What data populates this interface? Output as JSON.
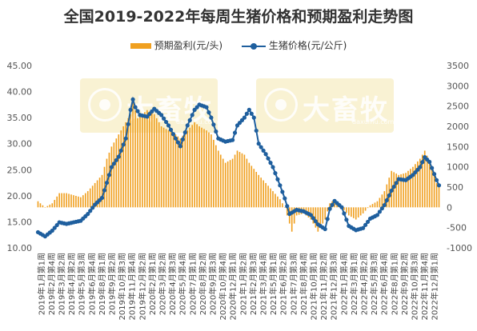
{
  "chart_data": {
    "type": "bar+line",
    "title": "全国2019-2022年每周生猪价格和预期盈利走势图",
    "legend_position": "top",
    "bar_series": {
      "name": "预期盈利(元/头)",
      "color": "#f0a020",
      "axis": "right"
    },
    "line_series": {
      "name": "生猪价格(元/公斤)",
      "color": "#1f5f9e",
      "axis": "left"
    },
    "left_axis": {
      "min": 10,
      "max": 45,
      "step": 5,
      "tick_labels": [
        "10.00",
        "15.00",
        "20.00",
        "25.00",
        "30.00",
        "35.00",
        "40.00",
        "45.00"
      ]
    },
    "right_axis": {
      "min": -1000,
      "max": 3500,
      "step": 500,
      "tick_labels": [
        "-1000",
        "-500",
        "0",
        "500",
        "1000",
        "1500",
        "2000",
        "2500",
        "3000",
        "3500"
      ]
    },
    "grid": false,
    "x_tick_labels": [
      "2019年1月第1周",
      "2019年2月第4周",
      "2019年3月第2周",
      "2019年4月第2周",
      "2019年5月第3周",
      "2019年6月第4周",
      "2019年8月第1周",
      "2019年9月第2周",
      "2019年10月第3周",
      "2019年11月第4周",
      "2019年12月第2周",
      "2020年2月第1周",
      "2020年3月第2周",
      "2020年4月第3周",
      "2020年5月第4周",
      "2020年7月第1周",
      "2020年8月第2周",
      "2020年9月第3周",
      "2020年10月第4周",
      "2020年12月第1周",
      "2021年1月第2周",
      "2021年2月第3周",
      "2021年3月第4周",
      "2021年5月第1周",
      "2021年6月第2周",
      "2021年7月第3周",
      "2021年8月第4周",
      "2021年10月第1周",
      "2021年11月第2周",
      "2021年12月第3周",
      "2022年1月第4周",
      "2022年3月第1周",
      "2022年4月第2周",
      "2022年5月第3周",
      "2022年6月第4周",
      "2022年8月第1周",
      "2022年9月第2周",
      "2022年10月第3周",
      "2022年11月第4周",
      "2022年12月第1周"
    ],
    "price_keypoints": [
      [
        0,
        13.0
      ],
      [
        3,
        12.2
      ],
      [
        6,
        13.3
      ],
      [
        9,
        14.9
      ],
      [
        12,
        14.6
      ],
      [
        15,
        14.9
      ],
      [
        18,
        15.2
      ],
      [
        21,
        16.5
      ],
      [
        24,
        18.3
      ],
      [
        27,
        19.6
      ],
      [
        29,
        22.5
      ],
      [
        31,
        25.5
      ],
      [
        34,
        27.5
      ],
      [
        37,
        31.0
      ],
      [
        39,
        36.5
      ],
      [
        40,
        38.5
      ],
      [
        41,
        37.0
      ],
      [
        43,
        35.5
      ],
      [
        46,
        35.2
      ],
      [
        49,
        36.7
      ],
      [
        52,
        35.5
      ],
      [
        55,
        33.5
      ],
      [
        58,
        31.0
      ],
      [
        60,
        29.5
      ],
      [
        63,
        33.5
      ],
      [
        66,
        36.5
      ],
      [
        68,
        37.5
      ],
      [
        71,
        37.0
      ],
      [
        73,
        35.0
      ],
      [
        76,
        31.0
      ],
      [
        79,
        30.4
      ],
      [
        82,
        30.7
      ],
      [
        84,
        33.5
      ],
      [
        87,
        35.0
      ],
      [
        89,
        36.5
      ],
      [
        91,
        35.0
      ],
      [
        93,
        30.0
      ],
      [
        96,
        28.0
      ],
      [
        99,
        25.5
      ],
      [
        102,
        22.0
      ],
      [
        104,
        19.5
      ],
      [
        106,
        16.5
      ],
      [
        109,
        17.3
      ],
      [
        112,
        17.0
      ],
      [
        115,
        16.3
      ],
      [
        118,
        14.5
      ],
      [
        121,
        13.6
      ],
      [
        123,
        17.5
      ],
      [
        125,
        19.0
      ],
      [
        128,
        17.8
      ],
      [
        131,
        14.2
      ],
      [
        134,
        13.4
      ],
      [
        137,
        13.8
      ],
      [
        140,
        15.6
      ],
      [
        143,
        16.3
      ],
      [
        146,
        18.2
      ],
      [
        149,
        21.0
      ],
      [
        152,
        23.2
      ],
      [
        155,
        23.0
      ],
      [
        158,
        24.0
      ],
      [
        161,
        25.5
      ],
      [
        163,
        27.4
      ],
      [
        165,
        26.5
      ],
      [
        168,
        23.0
      ],
      [
        169,
        22.0
      ]
    ],
    "profit_keypoints": [
      [
        0,
        150
      ],
      [
        3,
        0
      ],
      [
        6,
        100
      ],
      [
        9,
        350
      ],
      [
        12,
        350
      ],
      [
        15,
        300
      ],
      [
        18,
        250
      ],
      [
        21,
        400
      ],
      [
        24,
        600
      ],
      [
        27,
        800
      ],
      [
        29,
        1200
      ],
      [
        31,
        1500
      ],
      [
        34,
        1800
      ],
      [
        37,
        2100
      ],
      [
        39,
        2300
      ],
      [
        40,
        2600
      ],
      [
        42,
        2200
      ],
      [
        46,
        2400
      ],
      [
        49,
        2300
      ],
      [
        52,
        2000
      ],
      [
        55,
        1900
      ],
      [
        58,
        1800
      ],
      [
        60,
        1700
      ],
      [
        63,
        1900
      ],
      [
        66,
        2100
      ],
      [
        68,
        2000
      ],
      [
        71,
        1900
      ],
      [
        73,
        1800
      ],
      [
        76,
        1400
      ],
      [
        79,
        1100
      ],
      [
        82,
        1200
      ],
      [
        84,
        1400
      ],
      [
        87,
        1300
      ],
      [
        89,
        1100
      ],
      [
        91,
        950
      ],
      [
        93,
        800
      ],
      [
        96,
        600
      ],
      [
        99,
        400
      ],
      [
        102,
        200
      ],
      [
        104,
        0
      ],
      [
        106,
        -400
      ],
      [
        107,
        -600
      ],
      [
        109,
        -200
      ],
      [
        112,
        -150
      ],
      [
        115,
        -300
      ],
      [
        118,
        -600
      ],
      [
        121,
        -300
      ],
      [
        123,
        100
      ],
      [
        125,
        200
      ],
      [
        128,
        0
      ],
      [
        131,
        -200
      ],
      [
        134,
        -300
      ],
      [
        137,
        -150
      ],
      [
        140,
        50
      ],
      [
        143,
        150
      ],
      [
        146,
        400
      ],
      [
        149,
        900
      ],
      [
        152,
        800
      ],
      [
        155,
        850
      ],
      [
        158,
        1000
      ],
      [
        161,
        1200
      ],
      [
        163,
        1400
      ],
      [
        165,
        1150
      ],
      [
        168,
        600
      ],
      [
        169,
        500
      ]
    ],
    "week_count": 170
  }
}
